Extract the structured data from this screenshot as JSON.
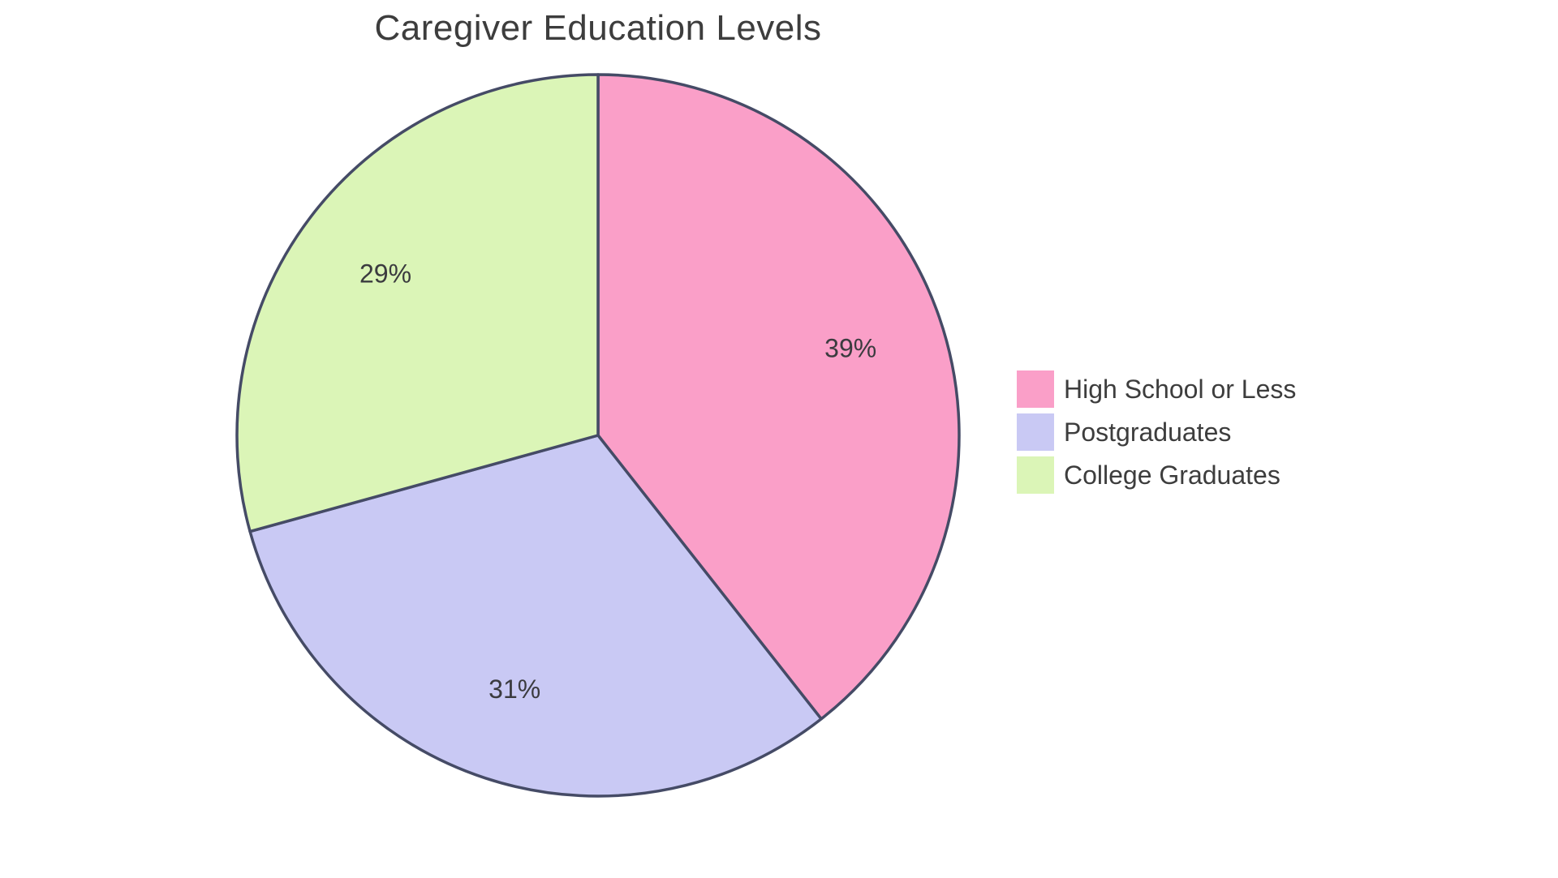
{
  "chart_data": {
    "type": "pie",
    "title": "Caregiver Education Levels",
    "labels": [
      "High School or Less",
      "Postgraduates",
      "College Graduates"
    ],
    "values": [
      39,
      31,
      29
    ],
    "slice_labels": [
      "39%",
      "31%",
      "29%"
    ],
    "colors": [
      "#FA9FC8",
      "#C9C9F4",
      "#DBF5B7"
    ],
    "border_color": "#454B66",
    "title_color": "#3D3D3D",
    "label_color": "#3B3B3F",
    "start_angle": "12-oclock",
    "direction": "clockwise",
    "legend_position": "right",
    "background": "#FFFFFF"
  }
}
